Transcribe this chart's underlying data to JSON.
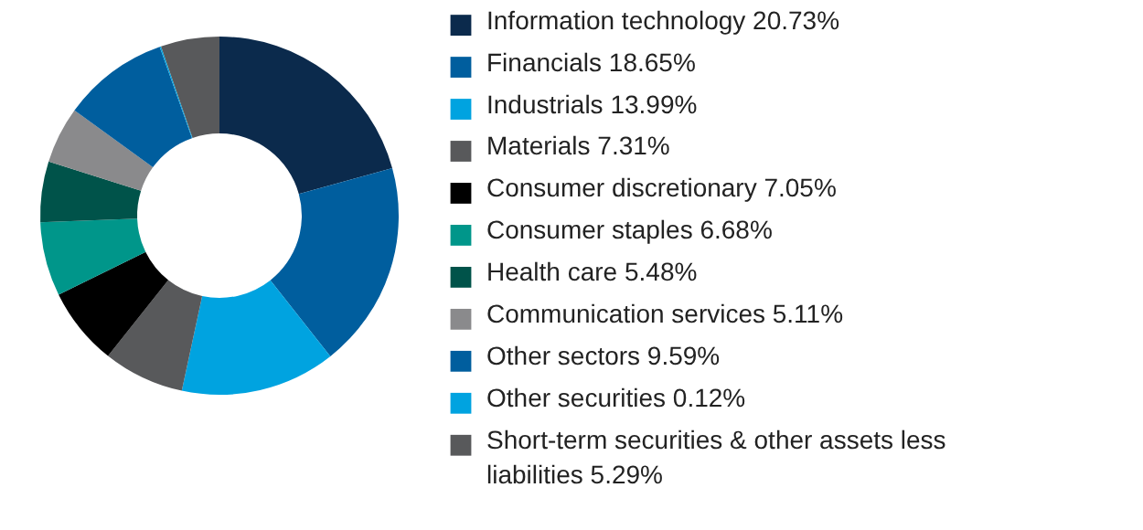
{
  "chart_data": {
    "type": "donut",
    "legend": "right",
    "categories": [
      "Information technology",
      "Financials",
      "Industrials",
      "Materials",
      "Consumer discretionary",
      "Consumer staples",
      "Health care",
      "Communication services",
      "Other sectors",
      "Other securities",
      "Short-term securities & other assets less liabilities"
    ],
    "values": [
      20.73,
      18.65,
      13.99,
      7.31,
      7.05,
      6.68,
      5.48,
      5.11,
      9.59,
      0.12,
      5.29
    ],
    "value_labels": [
      "20.73%",
      "18.65%",
      "13.99%",
      "7.31%",
      "7.05%",
      "6.68%",
      "5.48%",
      "5.11%",
      "9.59%",
      "0.12%",
      "5.29%"
    ],
    "colors": [
      "#0b2a4c",
      "#005e9e",
      "#00a3e0",
      "#58595b",
      "#000000",
      "#00968a",
      "#00534a",
      "#8a8a8c",
      "#005e9e",
      "#00a3e0",
      "#58595b"
    ]
  }
}
